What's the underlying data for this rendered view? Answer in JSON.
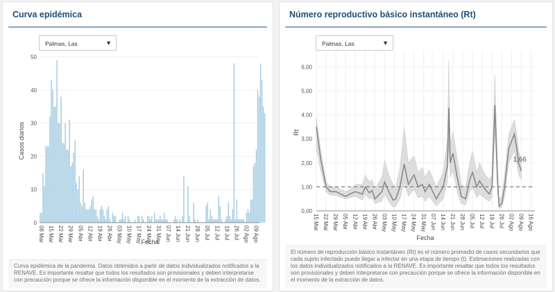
{
  "left_panel": {
    "title": "Curva epidémica",
    "dropdown": {
      "selected": "Palmas, Las",
      "arrow": "▼"
    },
    "footnote": "Curva epidémica de la pandemia. Datos obtenidos a partir de datos individualizados notificados a la RENAVE. Es importante resaltar que todos los resultados son provisionales y deben interpretarse con precaución porque se ofrece la información disponible en el momento de la extracción de datos."
  },
  "right_panel": {
    "title": "Número reproductivo básico instantáneo (Rt)",
    "dropdown": {
      "selected": "Palmas, Las",
      "arrow": "▼"
    },
    "footnote": "El número de reproducción básico instantáneo (Rt) es el número promedio de casos secundarios que cada sujeto infectado puede llegar a infectar en una etapa de tiempo (t). Estimaciones realizadas con los datos individualizados notificados a la RENAVE. Es importante resaltar que todos los resultados son provisionales y deben interpretarse con precaución porque se ofrece la información disponible en el momento de la extracción de datos."
  },
  "chart_data": [
    {
      "type": "bar",
      "title": "Curva epidémica",
      "xlabel": "Fecha",
      "ylabel": "Casos diarios",
      "ylim": [
        0,
        50
      ],
      "yticks": [
        0,
        10,
        20,
        30,
        40,
        50
      ],
      "start_date": "08 Mar",
      "xtick_labels": [
        "08 Mar",
        "15 Mar",
        "22 Mar",
        "29 Mar",
        "05 Abr",
        "12 Abr",
        "19 Abr",
        "26 Abr",
        "03 May",
        "10 May",
        "17 May",
        "24 May",
        "31 May",
        "07 Jun",
        "14 Jun",
        "21 Jun",
        "28 Jun",
        "05 Jul",
        "12 Jul",
        "19 Jul",
        "26 Jul",
        "02 Ago",
        "09 Ago"
      ],
      "color": "#a6cde3",
      "values": [
        3,
        3,
        15,
        11,
        23,
        23,
        23,
        32,
        43,
        40,
        35,
        35,
        49,
        30,
        30,
        38,
        24,
        24,
        30,
        22,
        22,
        31,
        17,
        18,
        21,
        25,
        12,
        10,
        14,
        6,
        5,
        16,
        6,
        4,
        4,
        4,
        5,
        7,
        8,
        4,
        4,
        2,
        1,
        4,
        5,
        4,
        2,
        1,
        4,
        5,
        1,
        0,
        3,
        2,
        2,
        0,
        0,
        1,
        1,
        3,
        1,
        2,
        0,
        2,
        1,
        0,
        0,
        0,
        1,
        0,
        2,
        2,
        0,
        2,
        1,
        0,
        0,
        2,
        2,
        1,
        2,
        0,
        3,
        1,
        1,
        1,
        2,
        1,
        1,
        3,
        1,
        1,
        0,
        0,
        0,
        0,
        1,
        2,
        1,
        0,
        1,
        0,
        2,
        14,
        0,
        0,
        11,
        2,
        0,
        0,
        6,
        1,
        0,
        1,
        0,
        0,
        0,
        0,
        0,
        5,
        6,
        1,
        4,
        2,
        1,
        1,
        1,
        1,
        8,
        5,
        1,
        0,
        0,
        1,
        2,
        6,
        2,
        1,
        4,
        48,
        1,
        7,
        1,
        1,
        1,
        1,
        1,
        0,
        3,
        4,
        3,
        7,
        7,
        17,
        18,
        22,
        40,
        38,
        48,
        43,
        35,
        33
      ]
    },
    {
      "type": "line",
      "title": "Número reproductivo básico instantáneo (Rt)",
      "xlabel": "Fecha",
      "ylabel": "Rt",
      "ylim": [
        0,
        6.5
      ],
      "yticks": [
        "0,00",
        "1,00",
        "2,00",
        "3,00",
        "4,00",
        "5,00",
        "6,00"
      ],
      "reference_line": 1.0,
      "xtick_labels": [
        "15 Mar",
        "22 Mar",
        "29 Mar",
        "05 Abr",
        "12 Abr",
        "19 Abr",
        "26 Abr",
        "03 May",
        "10 May",
        "17 May",
        "24 May",
        "31 May",
        "07 Jun",
        "14 Jun",
        "21 Jun",
        "28 Jun",
        "05 Jul",
        "12 Jul",
        "19 Jul",
        "26 Jul",
        "02 Ago",
        "09 Ago",
        "16 Ago"
      ],
      "last_value_label": "1,66",
      "day_offsets": [
        0,
        3,
        7,
        10,
        14,
        21,
        24,
        28,
        33,
        35,
        38,
        40,
        42,
        47,
        49,
        52,
        55,
        57,
        60,
        63,
        66,
        70,
        73,
        76,
        78,
        81,
        86,
        91,
        94,
        95,
        96,
        98,
        101,
        104,
        107,
        110,
        112,
        115,
        117,
        121,
        124,
        126,
        128,
        130,
        131,
        133,
        135,
        138,
        142,
        144,
        145,
        147
      ],
      "rt": [
        3.5,
        2.2,
        1.0,
        0.8,
        0.8,
        0.6,
        0.7,
        0.8,
        0.7,
        1.0,
        0.75,
        0.85,
        0.5,
        0.8,
        1.2,
        0.8,
        0.45,
        0.5,
        1.0,
        1.95,
        1.1,
        1.5,
        1.0,
        1.1,
        0.8,
        1.1,
        0.5,
        1.0,
        1.9,
        4.3,
        2.0,
        2.4,
        1.4,
        0.6,
        0.5,
        1.3,
        1.6,
        1.0,
        1.25,
        0.9,
        0.7,
        1.0,
        4.4,
        1.2,
        0.2,
        0.3,
        1.0,
        2.6,
        3.2,
        2.5,
        2.0,
        1.66
      ],
      "ci_low": [
        2.6,
        1.7,
        0.8,
        0.65,
        0.65,
        0.5,
        0.55,
        0.6,
        0.45,
        0.7,
        0.5,
        0.55,
        0.3,
        0.4,
        0.7,
        0.4,
        0.15,
        0.2,
        0.5,
        1.2,
        0.6,
        0.9,
        0.55,
        0.6,
        0.4,
        0.6,
        0.2,
        0.5,
        1.2,
        2.8,
        1.4,
        1.7,
        0.8,
        0.3,
        0.25,
        0.8,
        1.0,
        0.55,
        0.7,
        0.5,
        0.4,
        0.6,
        3.4,
        0.8,
        0.1,
        0.15,
        0.6,
        2.0,
        2.5,
        1.9,
        1.5,
        1.3
      ],
      "ci_high": [
        3.9,
        2.6,
        1.2,
        1.0,
        1.0,
        0.8,
        0.9,
        1.1,
        1.1,
        1.5,
        1.2,
        1.3,
        0.9,
        1.4,
        2.1,
        1.5,
        1.1,
        1.0,
        1.8,
        3.5,
        2.0,
        2.3,
        1.6,
        1.8,
        1.4,
        1.7,
        1.0,
        1.6,
        3.0,
        6.3,
        2.8,
        3.3,
        2.2,
        1.1,
        1.0,
        2.0,
        2.5,
        1.6,
        2.0,
        1.5,
        1.3,
        1.5,
        5.7,
        1.8,
        0.5,
        0.6,
        1.5,
        3.2,
        3.8,
        3.1,
        2.5,
        2.1
      ]
    }
  ]
}
